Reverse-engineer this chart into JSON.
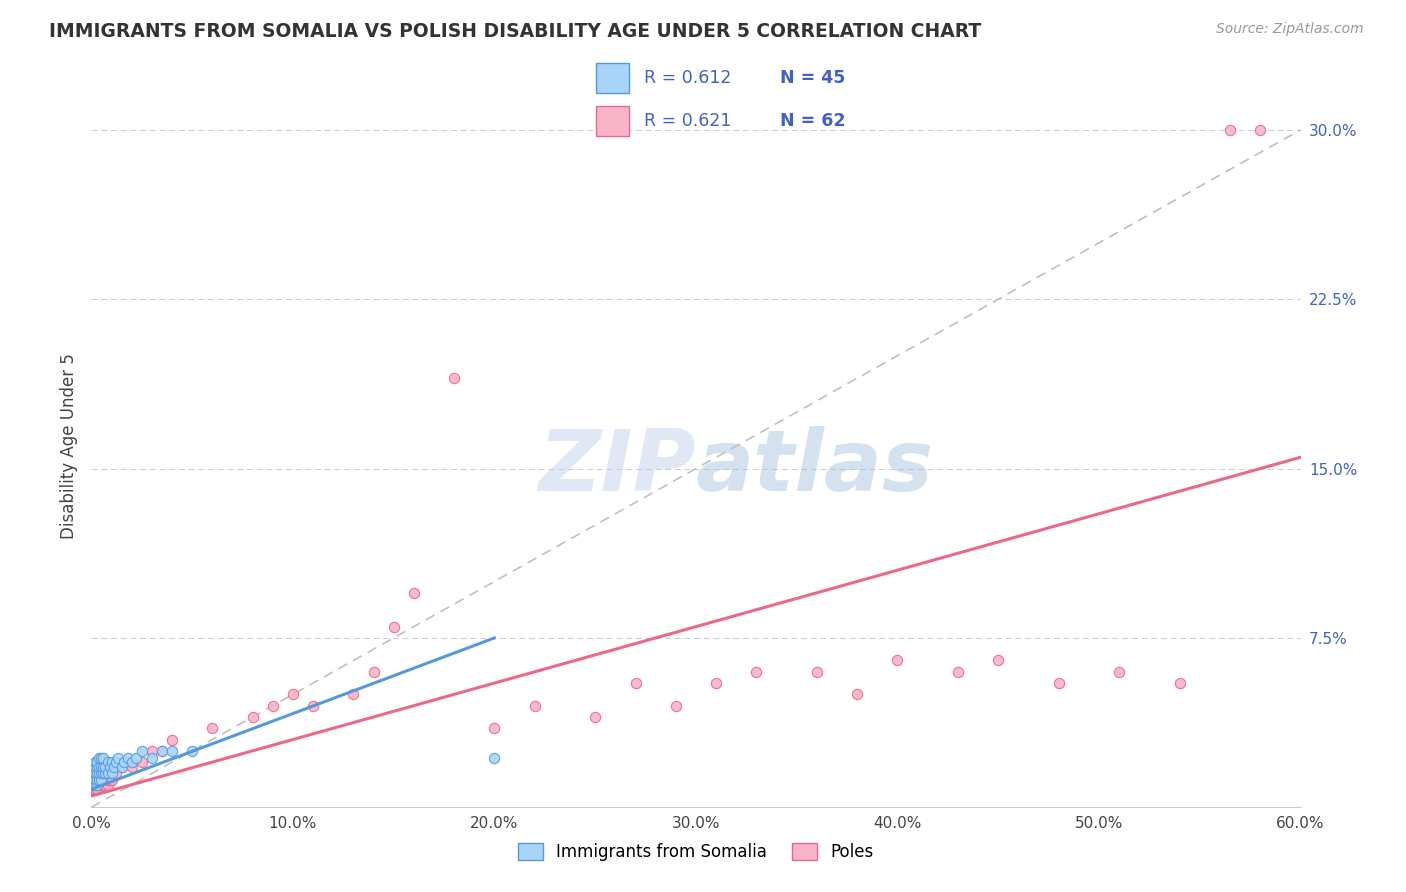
{
  "title": "IMMIGRANTS FROM SOMALIA VS POLISH DISABILITY AGE UNDER 5 CORRELATION CHART",
  "source": "Source: ZipAtlas.com",
  "ylabel": "Disability Age Under 5",
  "xlim": [
    0.0,
    0.6
  ],
  "ylim": [
    0.0,
    0.32
  ],
  "xtick_labels": [
    "0.0%",
    "10.0%",
    "20.0%",
    "30.0%",
    "40.0%",
    "50.0%",
    "60.0%"
  ],
  "xtick_vals": [
    0.0,
    0.1,
    0.2,
    0.3,
    0.4,
    0.5,
    0.6
  ],
  "ytick_labels": [
    "7.5%",
    "15.0%",
    "22.5%",
    "30.0%"
  ],
  "ytick_vals": [
    0.075,
    0.15,
    0.225,
    0.3
  ],
  "somalia_color": "#A8D4F8",
  "poles_color": "#F8B4C8",
  "somalia_edge_color": "#5599DD",
  "poles_edge_color": "#EE6688",
  "trend_line_color": "#C0C0C0",
  "watermark_color": "#C8D8EE",
  "legend_text_color": "#4060CC",
  "legend_r_color": "#222222",
  "somalia_scatter_x": [
    0.001,
    0.001,
    0.001,
    0.002,
    0.002,
    0.002,
    0.002,
    0.002,
    0.003,
    0.003,
    0.003,
    0.003,
    0.003,
    0.004,
    0.004,
    0.004,
    0.004,
    0.005,
    0.005,
    0.005,
    0.005,
    0.006,
    0.006,
    0.006,
    0.007,
    0.007,
    0.008,
    0.008,
    0.009,
    0.01,
    0.01,
    0.011,
    0.012,
    0.013,
    0.015,
    0.016,
    0.018,
    0.02,
    0.022,
    0.025,
    0.03,
    0.035,
    0.04,
    0.05,
    0.2
  ],
  "somalia_scatter_y": [
    0.01,
    0.012,
    0.015,
    0.01,
    0.012,
    0.015,
    0.018,
    0.02,
    0.01,
    0.012,
    0.015,
    0.018,
    0.02,
    0.012,
    0.015,
    0.018,
    0.022,
    0.012,
    0.015,
    0.018,
    0.022,
    0.015,
    0.018,
    0.022,
    0.015,
    0.018,
    0.015,
    0.02,
    0.018,
    0.015,
    0.02,
    0.018,
    0.02,
    0.022,
    0.018,
    0.02,
    0.022,
    0.02,
    0.022,
    0.025,
    0.022,
    0.025,
    0.025,
    0.025,
    0.022
  ],
  "somalia_line_x0": 0.0,
  "somalia_line_x1": 0.2,
  "somalia_line_y0": 0.008,
  "somalia_line_y1": 0.075,
  "poles_line_x0": 0.0,
  "poles_line_x1": 0.6,
  "poles_line_y0": 0.005,
  "poles_line_y1": 0.155,
  "poles_scatter_x": [
    0.001,
    0.001,
    0.001,
    0.001,
    0.002,
    0.002,
    0.002,
    0.002,
    0.003,
    0.003,
    0.003,
    0.003,
    0.004,
    0.004,
    0.004,
    0.005,
    0.005,
    0.005,
    0.006,
    0.006,
    0.006,
    0.007,
    0.007,
    0.008,
    0.008,
    0.009,
    0.01,
    0.01,
    0.012,
    0.015,
    0.02,
    0.025,
    0.03,
    0.035,
    0.04,
    0.06,
    0.08,
    0.09,
    0.1,
    0.11,
    0.13,
    0.14,
    0.15,
    0.16,
    0.18,
    0.2,
    0.22,
    0.25,
    0.27,
    0.29,
    0.31,
    0.33,
    0.36,
    0.38,
    0.4,
    0.43,
    0.45,
    0.48,
    0.51,
    0.54,
    0.565,
    0.58
  ],
  "poles_scatter_y": [
    0.008,
    0.01,
    0.012,
    0.015,
    0.008,
    0.01,
    0.012,
    0.015,
    0.008,
    0.01,
    0.012,
    0.015,
    0.01,
    0.012,
    0.015,
    0.01,
    0.012,
    0.015,
    0.01,
    0.012,
    0.015,
    0.01,
    0.012,
    0.01,
    0.012,
    0.012,
    0.012,
    0.015,
    0.015,
    0.018,
    0.018,
    0.02,
    0.025,
    0.025,
    0.03,
    0.035,
    0.04,
    0.045,
    0.05,
    0.045,
    0.05,
    0.06,
    0.08,
    0.095,
    0.19,
    0.035,
    0.045,
    0.04,
    0.055,
    0.045,
    0.055,
    0.06,
    0.06,
    0.05,
    0.065,
    0.06,
    0.065,
    0.055,
    0.06,
    0.055,
    0.3,
    0.3
  ]
}
